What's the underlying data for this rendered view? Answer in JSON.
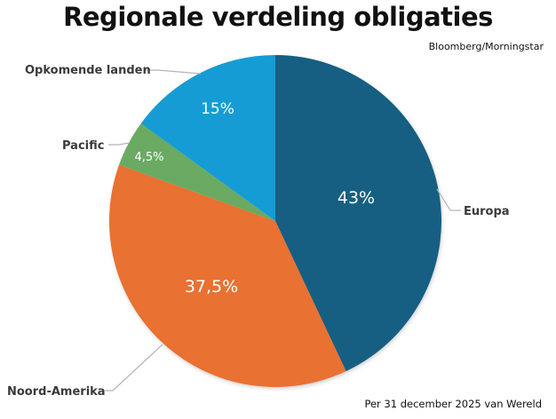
{
  "title": "Regionale verdeling obligaties",
  "source": "Bloomberg/Morningstar",
  "footnote": "Per 31 december 2025 van Wereld",
  "chart_data": {
    "type": "pie",
    "title": "Regionale verdeling obligaties",
    "start_angle": "12 o'clock, clockwise",
    "slices": [
      {
        "label": "Europa",
        "value": 43,
        "display": "43%",
        "color": "#175e82"
      },
      {
        "label": "Noord-Amerika",
        "value": 37.5,
        "display": "37,5%",
        "color": "#e97132"
      },
      {
        "label": "Pacific",
        "value": 4.5,
        "display": "4,5%",
        "color": "#6aaa64"
      },
      {
        "label": "Opkomende landen",
        "value": 15,
        "display": "15%",
        "color": "#139cd4"
      }
    ],
    "annotations": [
      "Bloomberg/Morningstar",
      "Per 31 december 2025 van Wereld"
    ]
  }
}
